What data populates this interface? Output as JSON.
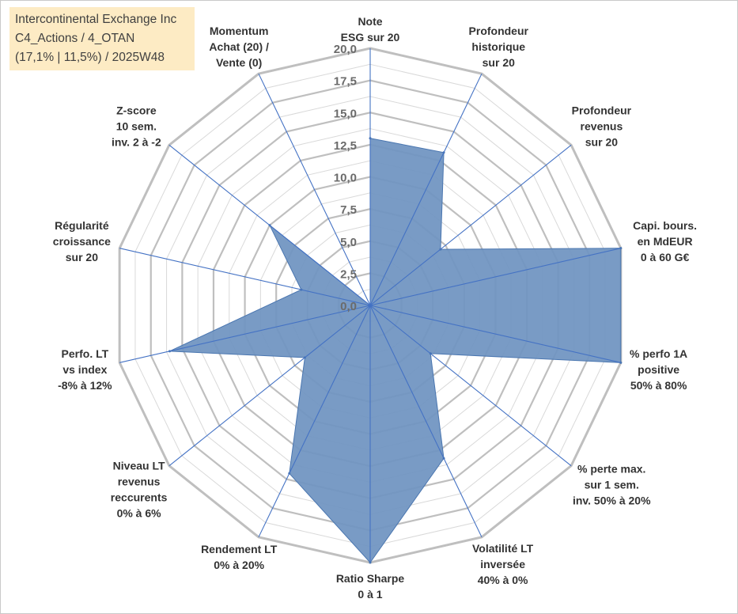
{
  "title_box": {
    "line1": "Intercontinental Exchange Inc",
    "line2": "C4_Actions / 4_OTAN",
    "line3": "(17,1% | 11,5%) / 2025W48"
  },
  "colors": {
    "fill": "#6f93c1",
    "edge": "#4a76b0",
    "spoke": "#4472c4",
    "ring_major": "#bfbfbf",
    "ring_minor": "#d9d9d9",
    "text": "#333333"
  },
  "chart_data": {
    "type": "radar",
    "title": "",
    "range": [
      0,
      20
    ],
    "ticks": [
      "0,0",
      "2,5",
      "5,0",
      "7,5",
      "10,0",
      "12,5",
      "15,0",
      "17,5",
      "20,0"
    ],
    "tick_values": [
      0,
      2.5,
      5,
      7.5,
      10,
      12.5,
      15,
      17.5,
      20
    ],
    "axes": [
      {
        "lines": [
          "Note",
          "ESG sur 20"
        ]
      },
      {
        "lines": [
          "Profondeur",
          "historique",
          "sur 20"
        ]
      },
      {
        "lines": [
          "Profondeur",
          "revenus",
          "sur 20"
        ]
      },
      {
        "lines": [
          "Capi. bours.",
          "en MdEUR",
          "0 à 60 G€"
        ]
      },
      {
        "lines": [
          "% perfo 1A",
          "positive",
          "50% à 80%"
        ]
      },
      {
        "lines": [
          "% perte max.",
          "sur 1 sem.",
          "inv. 50% à 20%"
        ]
      },
      {
        "lines": [
          "Volatilité LT",
          "inversée",
          "40% à 0%"
        ]
      },
      {
        "lines": [
          "Ratio Sharpe",
          "0 à 1"
        ]
      },
      {
        "lines": [
          "Rendement LT",
          "0% à 20%"
        ]
      },
      {
        "lines": [
          "Niveau LT",
          "revenus",
          "reccurents",
          "0% à 6%"
        ]
      },
      {
        "lines": [
          "Perfo. LT",
          "vs index",
          "-8% à 12%"
        ]
      },
      {
        "lines": [
          "Régularité",
          "croissance",
          "sur 20"
        ]
      },
      {
        "lines": [
          "Z-score",
          "10 sem.",
          "inv. 2 à -2"
        ]
      },
      {
        "lines": [
          "Momentum",
          "Achat (20) /",
          "Vente (0)"
        ]
      }
    ],
    "series": [
      {
        "name": "Intercontinental Exchange Inc",
        "values": [
          13.0,
          13.2,
          7.0,
          20.0,
          20.0,
          6.0,
          13.2,
          20.0,
          14.5,
          6.5,
          16.0,
          5.5,
          10.0,
          0.0
        ]
      }
    ]
  }
}
